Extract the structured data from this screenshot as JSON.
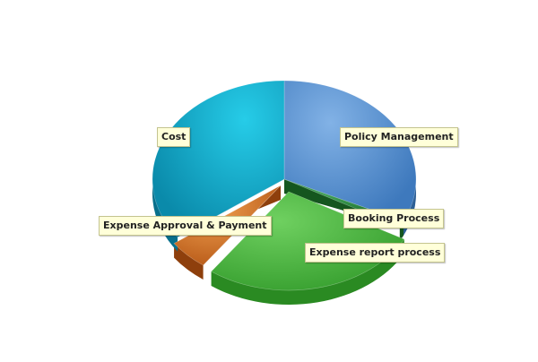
{
  "chart_data": {
    "type": "pie",
    "style": "3d-exploded",
    "categories": [
      "Policy Management",
      "Booking Process",
      "Expense report process",
      "Expense Approval & Payment",
      "Cost"
    ],
    "values": [
      32,
      1,
      27,
      5,
      35
    ],
    "colors": [
      "#4e8ed0",
      "#2a8a3a",
      "#48b53f",
      "#d0752a",
      "#1a9ebd"
    ],
    "title": "",
    "legend": "none"
  }
}
